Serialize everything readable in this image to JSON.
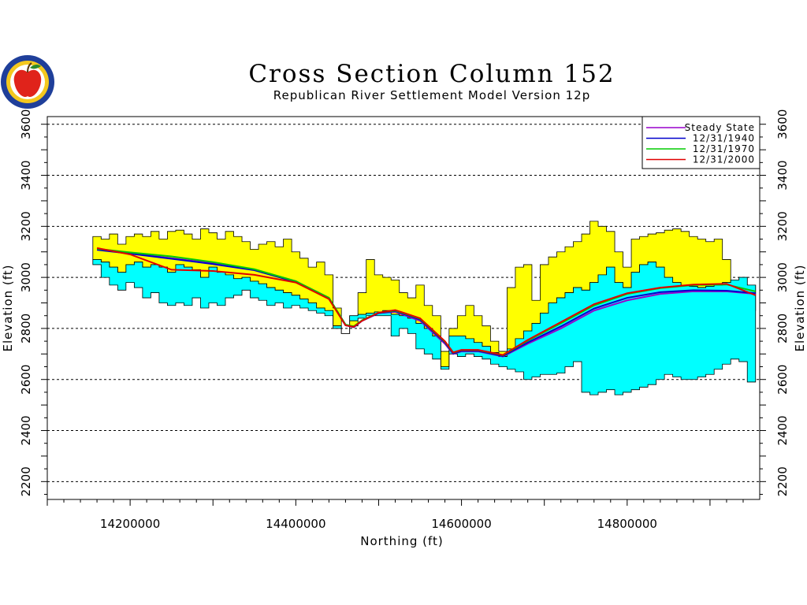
{
  "logo": {
    "icon": "apple-seal-logo",
    "colors": {
      "ring": "#1f3f9a",
      "apple": "#e0231b",
      "leaf": "#2c8a2c",
      "inner": "#f4c81e"
    }
  },
  "chart_data": {
    "type": "area",
    "title": "Cross Section Column 152",
    "subtitle": "Republican River Settlement Model Version 12p",
    "xlabel": "Northing (ft)",
    "ylabel": "Elevation (ft)",
    "ylabel_right": "Elevation (ft)",
    "xlim": [
      14100000,
      14960000
    ],
    "ylim": [
      2130,
      3630
    ],
    "grid": "horizontal dashed",
    "legend_position": "top-right",
    "x_ticks": [
      {
        "value": 14200000,
        "label": "14200000"
      },
      {
        "value": 14400000,
        "label": "14400000"
      },
      {
        "value": 14600000,
        "label": "14600000"
      },
      {
        "value": 14800000,
        "label": "14800000"
      }
    ],
    "y_ticks": [
      {
        "value": 2200,
        "label": "2200"
      },
      {
        "value": 2400,
        "label": "2400"
      },
      {
        "value": 2600,
        "label": "2600"
      },
      {
        "value": 2800,
        "label": "2800"
      },
      {
        "value": 3000,
        "label": "3000"
      },
      {
        "value": 3200,
        "label": "3200"
      },
      {
        "value": 3400,
        "label": "3400"
      },
      {
        "value": 3600,
        "label": "3600"
      }
    ],
    "layers": {
      "x": [
        14160000,
        14170000,
        14180000,
        14190000,
        14200000,
        14210000,
        14220000,
        14230000,
        14240000,
        14250000,
        14260000,
        14270000,
        14280000,
        14290000,
        14300000,
        14310000,
        14320000,
        14330000,
        14340000,
        14350000,
        14360000,
        14370000,
        14380000,
        14390000,
        14400000,
        14410000,
        14420000,
        14430000,
        14440000,
        14450000,
        14460000,
        14470000,
        14480000,
        14490000,
        14500000,
        14510000,
        14520000,
        14530000,
        14540000,
        14550000,
        14560000,
        14570000,
        14580000,
        14590000,
        14600000,
        14610000,
        14620000,
        14630000,
        14640000,
        14650000,
        14660000,
        14670000,
        14680000,
        14690000,
        14700000,
        14710000,
        14720000,
        14730000,
        14740000,
        14750000,
        14760000,
        14770000,
        14780000,
        14790000,
        14800000,
        14810000,
        14820000,
        14830000,
        14840000,
        14850000,
        14860000,
        14870000,
        14880000,
        14890000,
        14900000,
        14910000,
        14920000,
        14930000,
        14940000,
        14950000
      ],
      "yellow_top": [
        3160,
        3150,
        3170,
        3130,
        3160,
        3170,
        3160,
        3180,
        3150,
        3180,
        3185,
        3170,
        3150,
        3190,
        3175,
        3150,
        3180,
        3160,
        3140,
        3110,
        3130,
        3140,
        3120,
        3150,
        3100,
        3075,
        3040,
        3060,
        3010,
        2880,
        2780,
        2810,
        2940,
        3070,
        3010,
        3000,
        2990,
        2940,
        2920,
        2970,
        2890,
        2850,
        2710,
        2800,
        2850,
        2890,
        2850,
        2810,
        2750,
        2710,
        2960,
        3040,
        3050,
        2910,
        3050,
        3080,
        3100,
        3120,
        3140,
        3170,
        3220,
        3200,
        3180,
        3100,
        3040,
        3150,
        3160,
        3170,
        3175,
        3185,
        3190,
        3180,
        3160,
        3150,
        3140,
        3150,
        3070,
        2980,
        2960,
        2870
      ],
      "cyan_top": [
        3070,
        3060,
        3040,
        3020,
        3050,
        3060,
        3040,
        3050,
        3040,
        3020,
        3050,
        3040,
        3030,
        3000,
        3040,
        3020,
        3010,
        2995,
        3000,
        2985,
        2975,
        2960,
        2950,
        2940,
        2930,
        2915,
        2900,
        2880,
        2870,
        2810,
        2780,
        2850,
        2855,
        2860,
        2865,
        2870,
        2855,
        2850,
        2840,
        2820,
        2800,
        2770,
        2650,
        2770,
        2770,
        2760,
        2745,
        2730,
        2705,
        2690,
        2720,
        2760,
        2790,
        2820,
        2860,
        2900,
        2920,
        2940,
        2960,
        2950,
        2980,
        3010,
        3040,
        2980,
        2960,
        3020,
        3050,
        3060,
        3040,
        3000,
        2980,
        2970,
        2965,
        2960,
        2965,
        2970,
        2980,
        2990,
        3000,
        2970
      ],
      "cyan_bottom": [
        3050,
        3000,
        2970,
        2950,
        2980,
        2960,
        2920,
        2940,
        2900,
        2890,
        2900,
        2890,
        2920,
        2880,
        2900,
        2890,
        2920,
        2930,
        2950,
        2920,
        2910,
        2890,
        2900,
        2880,
        2890,
        2880,
        2870,
        2860,
        2850,
        2800,
        2780,
        2830,
        2840,
        2850,
        2850,
        2850,
        2770,
        2800,
        2780,
        2720,
        2700,
        2680,
        2640,
        2700,
        2690,
        2700,
        2690,
        2680,
        2660,
        2650,
        2640,
        2630,
        2600,
        2610,
        2620,
        2620,
        2625,
        2650,
        2670,
        2550,
        2540,
        2550,
        2560,
        2540,
        2550,
        2560,
        2570,
        2580,
        2600,
        2620,
        2610,
        2600,
        2600,
        2610,
        2620,
        2640,
        2660,
        2680,
        2670,
        2590
      ]
    },
    "series": [
      {
        "name": "Steady State",
        "color": "#9900cc",
        "x": [
          14160000,
          14200000,
          14250000,
          14300000,
          14350000,
          14400000,
          14440000,
          14460000,
          14470000,
          14480000,
          14500000,
          14520000,
          14550000,
          14580000,
          14590000,
          14600000,
          14620000,
          14650000,
          14680000,
          14720000,
          14760000,
          14800000,
          14840000,
          14880000,
          14920000,
          14955000
        ],
        "y": [
          3110,
          3095,
          3075,
          3055,
          3030,
          2985,
          2920,
          2815,
          2805,
          2830,
          2860,
          2865,
          2830,
          2740,
          2700,
          2710,
          2710,
          2690,
          2740,
          2800,
          2870,
          2910,
          2935,
          2945,
          2945,
          2935
        ]
      },
      {
        "name": "12/31/1940",
        "color": "#0000cc",
        "x": [
          14160000,
          14200000,
          14250000,
          14300000,
          14350000,
          14400000,
          14440000,
          14460000,
          14470000,
          14480000,
          14500000,
          14520000,
          14550000,
          14580000,
          14590000,
          14600000,
          14620000,
          14650000,
          14680000,
          14720000,
          14760000,
          14800000,
          14840000,
          14880000,
          14920000,
          14955000
        ],
        "y": [
          3108,
          3093,
          3073,
          3052,
          3028,
          2982,
          2918,
          2812,
          2805,
          2830,
          2860,
          2868,
          2835,
          2745,
          2702,
          2712,
          2712,
          2692,
          2745,
          2808,
          2878,
          2920,
          2942,
          2950,
          2948,
          2938
        ]
      },
      {
        "name": "12/31/1970",
        "color": "#00cc00",
        "x": [
          14160000,
          14200000,
          14250000,
          14300000,
          14350000,
          14400000,
          14440000,
          14460000,
          14470000,
          14480000,
          14500000,
          14520000,
          14550000,
          14580000,
          14590000,
          14600000,
          14620000,
          14650000,
          14680000,
          14720000,
          14760000,
          14800000,
          14840000,
          14880000,
          14920000,
          14955000
        ],
        "y": [
          3112,
          3098,
          3082,
          3060,
          3032,
          2985,
          2920,
          2815,
          2808,
          2832,
          2862,
          2870,
          2838,
          2748,
          2705,
          2715,
          2715,
          2695,
          2752,
          2820,
          2890,
          2935,
          2958,
          2970,
          2972,
          2945
        ]
      },
      {
        "name": "12/31/2000",
        "color": "#e00000",
        "x": [
          14160000,
          14200000,
          14250000,
          14300000,
          14350000,
          14400000,
          14440000,
          14460000,
          14470000,
          14480000,
          14500000,
          14520000,
          14550000,
          14580000,
          14590000,
          14600000,
          14620000,
          14650000,
          14680000,
          14720000,
          14760000,
          14800000,
          14840000,
          14880000,
          14920000,
          14955000
        ],
        "y": [
          3115,
          3090,
          3030,
          3025,
          3010,
          2980,
          2915,
          2812,
          2806,
          2830,
          2862,
          2872,
          2840,
          2750,
          2706,
          2716,
          2716,
          2696,
          2755,
          2825,
          2895,
          2938,
          2960,
          2972,
          2975,
          2930
        ]
      }
    ]
  }
}
